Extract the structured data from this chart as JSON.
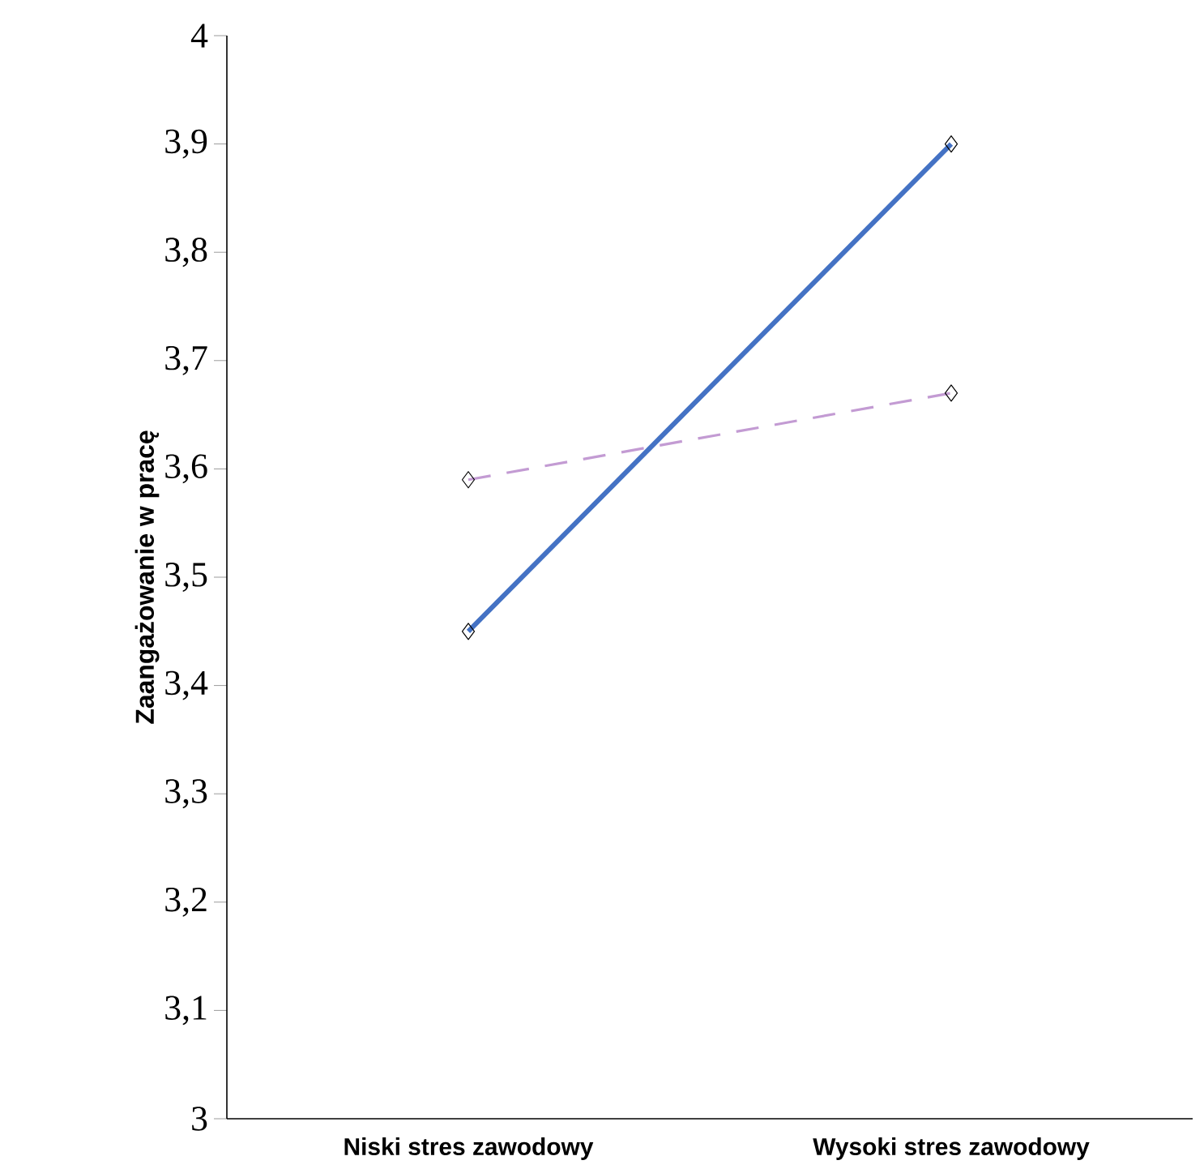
{
  "chart_data": {
    "type": "line",
    "ylabel": "Zaangażowanie w pracę",
    "categories": [
      "Niski stres zawodowy",
      "Wysoki stres zawodowy"
    ],
    "series": [
      {
        "color": "#4472c4",
        "values": [
          3.45,
          3.9
        ],
        "line_style": "solid"
      },
      {
        "color": "#c39bd3",
        "values": [
          3.59,
          3.67
        ],
        "line_style": "dashed"
      }
    ],
    "ylim": [
      3,
      4
    ],
    "yticks": [
      3,
      {
        "value": 3.1,
        "label": "3,1"
      },
      {
        "value": 3.2,
        "label": "3,2"
      },
      {
        "value": 3.3,
        "label": "3,3"
      },
      {
        "value": 3.4,
        "label": "3,4"
      },
      {
        "value": 3.5,
        "label": "3,5"
      },
      {
        "value": 3.6,
        "label": "3,6"
      },
      {
        "value": 3.7,
        "label": "3,7"
      },
      {
        "value": 3.8,
        "label": "3,8"
      },
      {
        "value": 3.9,
        "label": "3,9"
      },
      4
    ],
    "marker": "diamond",
    "grid": false
  }
}
